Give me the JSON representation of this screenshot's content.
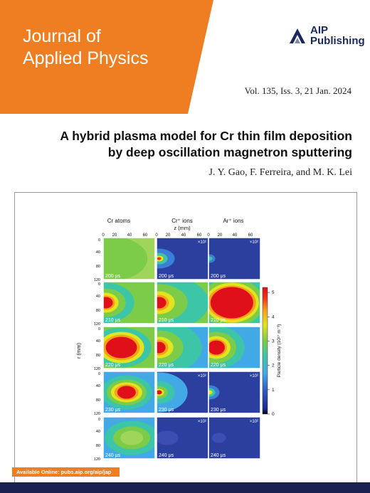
{
  "journal": {
    "name_line1": "Journal of",
    "name_line2": "Applied Physics"
  },
  "publisher": {
    "name_line1": "AIP",
    "name_line2": "Publishing",
    "logo_color": "#1a2a5c"
  },
  "issue": {
    "volume": "Vol. 135, Iss. 3, 21 Jan. 2024"
  },
  "article": {
    "title_line1": "A hybrid plasma model for Cr thin film deposition",
    "title_line2": "by deep oscillation magnetron sputtering",
    "authors": "J. Y. Gao, F. Ferreira, and M. K. Lei"
  },
  "figure": {
    "column_titles": [
      "Cr atoms",
      "Cr⁺ ions",
      "Ar⁺ ions"
    ],
    "x_axis_label": "z (mm)",
    "y_axis_label": "r (mm)",
    "x_ticks": [
      "0",
      "20",
      "40",
      "60"
    ],
    "y_ticks": [
      "0",
      "40",
      "80",
      "120"
    ],
    "time_labels": [
      "200 μs",
      "210 μs",
      "220 μs",
      "230 μs",
      "240 μs"
    ],
    "multiplier": "×10²",
    "colorbar": {
      "label": "Particle density (10¹⁷ m⁻³)",
      "ticks": [
        "0",
        "1",
        "2",
        "3",
        "4",
        "5"
      ],
      "min": 0,
      "max": 5
    },
    "multiplier_panels": [
      [
        0,
        1
      ],
      [
        0,
        2
      ],
      [
        3,
        1
      ],
      [
        3,
        2
      ],
      [
        4,
        1
      ],
      [
        4,
        2
      ]
    ]
  },
  "footer": {
    "availability": "Available Online: pubs.aip.org/aip/jap"
  },
  "colors": {
    "accent_orange": "#ef7d22",
    "navy": "#1b2150"
  }
}
